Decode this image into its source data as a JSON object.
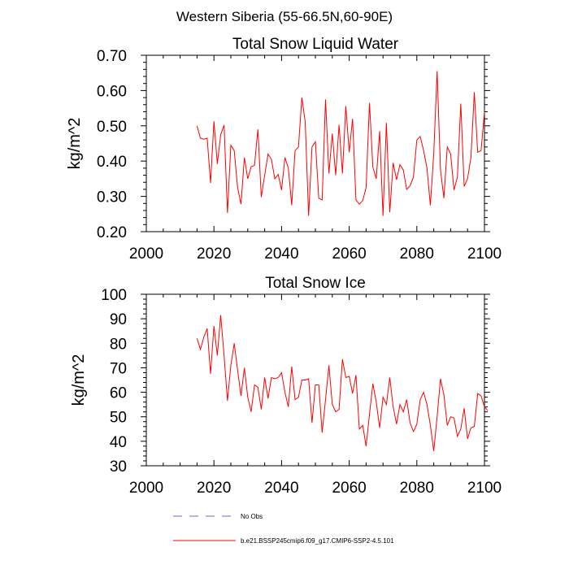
{
  "figure_title": "Western Siberia (55-66.5N,60-90E)",
  "colors": {
    "line": "#ff0000",
    "no_obs": "#6a6acd",
    "axis": "#000000"
  },
  "legend": [
    {
      "label": "No Obs",
      "style": "dashed",
      "color": "#6a6acd"
    },
    {
      "label": "b.e21.BSSP245cmip6.f09_g17.CMIP6-SSP2-4.5.101",
      "style": "solid",
      "color": "#ff0000"
    }
  ],
  "chart_data": [
    {
      "type": "line",
      "title": "Total Snow Liquid Water",
      "xlabel": "",
      "ylabel": "kg/m^2",
      "xlim": [
        2000,
        2100
      ],
      "ylim": [
        0.2,
        0.7
      ],
      "xticks": [
        "2000",
        "2020",
        "2040",
        "2060",
        "2080",
        "2100"
      ],
      "yticks": [
        "0.20",
        "0.30",
        "0.40",
        "0.50",
        "0.60",
        "0.70"
      ],
      "x_start": 2015,
      "x_step": 1,
      "series": [
        {
          "color": "#ff0000",
          "values": [
            0.5,
            0.465,
            0.462,
            0.465,
            0.338,
            0.513,
            0.392,
            0.475,
            0.502,
            0.253,
            0.445,
            0.43,
            0.325,
            0.278,
            0.41,
            0.35,
            0.384,
            0.388,
            0.49,
            0.298,
            0.36,
            0.42,
            0.405,
            0.35,
            0.362,
            0.318,
            0.41,
            0.38,
            0.275,
            0.43,
            0.44,
            0.58,
            0.51,
            0.245,
            0.44,
            0.455,
            0.295,
            0.29,
            0.575,
            0.365,
            0.478,
            0.36,
            0.503,
            0.365,
            0.556,
            0.425,
            0.52,
            0.29,
            0.278,
            0.288,
            0.325,
            0.565,
            0.383,
            0.35,
            0.485,
            0.245,
            0.508,
            0.255,
            0.395,
            0.347,
            0.39,
            0.375,
            0.32,
            0.33,
            0.355,
            0.46,
            0.47,
            0.43,
            0.38,
            0.275,
            0.42,
            0.655,
            0.375,
            0.295,
            0.44,
            0.42,
            0.318,
            0.355,
            0.563,
            0.328,
            0.35,
            0.41,
            0.595,
            0.425,
            0.43,
            0.54
          ]
        }
      ]
    },
    {
      "type": "line",
      "title": "Total Snow Ice",
      "xlabel": "",
      "ylabel": "kg/m^2",
      "xlim": [
        2000,
        2100
      ],
      "ylim": [
        30,
        100
      ],
      "xticks": [
        "2000",
        "2020",
        "2040",
        "2060",
        "2080",
        "2100"
      ],
      "yticks": [
        "30",
        "40",
        "50",
        "60",
        "70",
        "80",
        "90",
        "100"
      ],
      "x_start": 2015,
      "x_step": 1,
      "series": [
        {
          "color": "#ff0000",
          "values": [
            82,
            77.5,
            82.5,
            86,
            67.5,
            87,
            75,
            91.5,
            75,
            56.5,
            71,
            80,
            69,
            58.5,
            70,
            58,
            52,
            63,
            62,
            53,
            66,
            57.5,
            66,
            65.5,
            66,
            68,
            60,
            54,
            70.5,
            57,
            58,
            65,
            65,
            65.5,
            47.5,
            63,
            63,
            43.5,
            57,
            71,
            55,
            52,
            53,
            73.5,
            66,
            66.5,
            59.5,
            67,
            45,
            46.5,
            38,
            51,
            63.5,
            56,
            45.5,
            58,
            55,
            66,
            54,
            47,
            55,
            52,
            57,
            47.5,
            44,
            47,
            57,
            60,
            55,
            46.5,
            36,
            50,
            65.5,
            59,
            46.5,
            50,
            49.5,
            42,
            45,
            53.5,
            41,
            45.5,
            46,
            59.5,
            58.5,
            54,
            52.5
          ]
        }
      ]
    }
  ]
}
